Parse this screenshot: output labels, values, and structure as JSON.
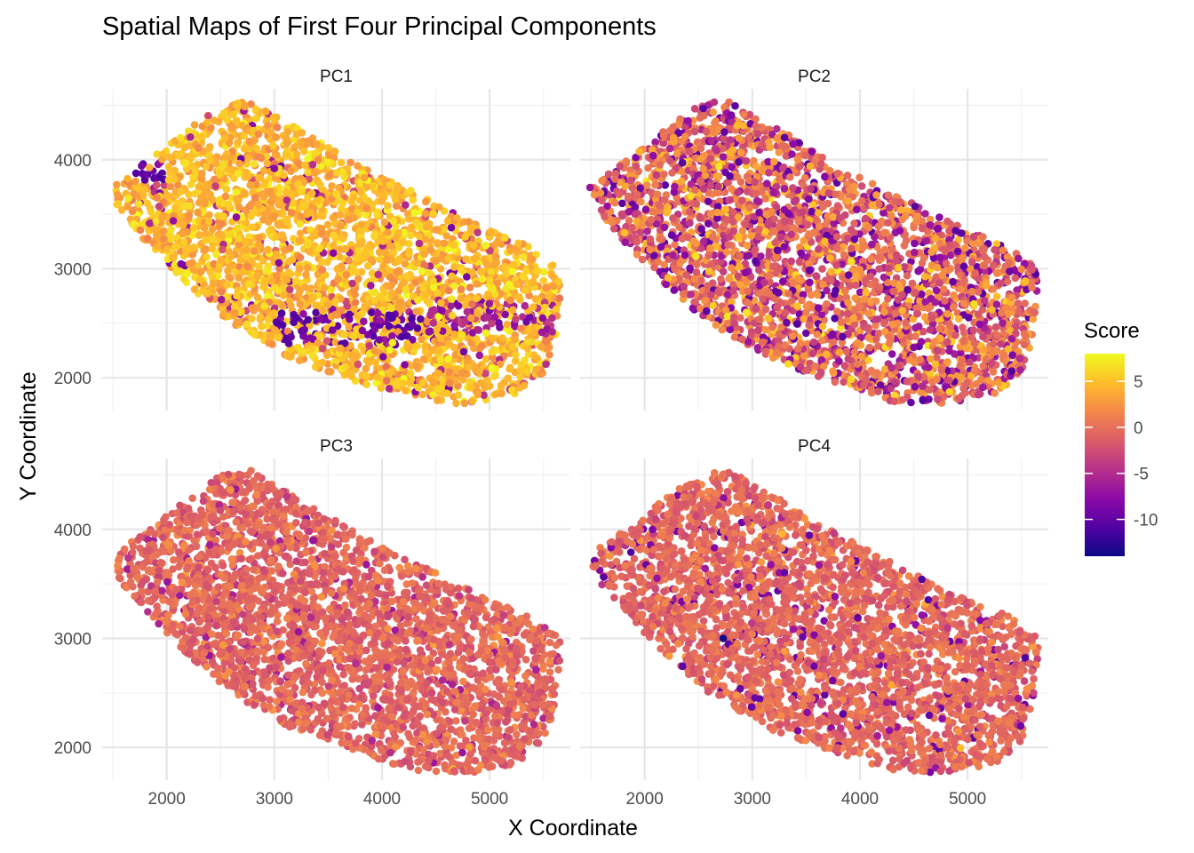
{
  "chart_data": {
    "type": "scatter",
    "title": "Spatial Maps of First Four Principal Components",
    "xlabel": "X Coordinate",
    "ylabel": "Y Coordinate",
    "xlim": [
      1400,
      5750
    ],
    "ylim": [
      1700,
      4650
    ],
    "x_ticks": [
      2000,
      3000,
      4000,
      5000
    ],
    "y_ticks": [
      2000,
      3000,
      4000
    ],
    "grid": true,
    "legend": {
      "title": "Score",
      "placement": "right",
      "type": "colorbar",
      "range": [
        -14,
        8
      ],
      "ticks": [
        5,
        0,
        -5,
        -10
      ],
      "colormap": "plasma",
      "colors": [
        "#0d0887",
        "#5302a3",
        "#8b0aa5",
        "#b83289",
        "#db5c68",
        "#f48849",
        "#febd2a",
        "#f0f921"
      ]
    },
    "panels": [
      {
        "name": "PC1",
        "spot_count": 3200,
        "score_summary": {
          "typical": 4.5,
          "min": -11,
          "max": 8
        },
        "low_score_regions": [
          {
            "x": [
              3000,
              4500
            ],
            "y": [
              2300,
              2600
            ],
            "score": -10
          },
          {
            "x": [
              1700,
              2000
            ],
            "y": [
              3800,
              4000
            ],
            "score": -10
          },
          {
            "x": [
              4400,
              5600
            ],
            "y": [
              2400,
              2700
            ],
            "score": -6
          }
        ]
      },
      {
        "name": "PC2",
        "spot_count": 3200,
        "score_summary": {
          "typical": 0,
          "min": -12,
          "max": 7
        }
      },
      {
        "name": "PC3",
        "spot_count": 3200,
        "score_summary": {
          "typical": -0.5,
          "min": -8,
          "max": 8
        }
      },
      {
        "name": "PC4",
        "spot_count": 3200,
        "score_summary": {
          "typical": -0.5,
          "min": -14,
          "max": 8
        },
        "notable_points": [
          {
            "x": 2730,
            "y": 3000,
            "score": -14
          },
          {
            "x": 3980,
            "y": 3190,
            "score": -10
          }
        ]
      }
    ],
    "tissue_outline": [
      [
        1480,
        3750
      ],
      [
        1600,
        3850
      ],
      [
        1900,
        4050
      ],
      [
        2150,
        4250
      ],
      [
        2500,
        4500
      ],
      [
        2800,
        4560
      ],
      [
        2950,
        4430
      ],
      [
        3300,
        4250
      ],
      [
        3800,
        3950
      ],
      [
        4500,
        3600
      ],
      [
        5000,
        3350
      ],
      [
        5400,
        3200
      ],
      [
        5650,
        3000
      ],
      [
        5660,
        2800
      ],
      [
        5620,
        2400
      ],
      [
        5500,
        2050
      ],
      [
        5250,
        1850
      ],
      [
        4800,
        1760
      ],
      [
        4300,
        1780
      ],
      [
        3800,
        1950
      ],
      [
        3200,
        2150
      ],
      [
        2600,
        2500
      ],
      [
        2200,
        2850
      ],
      [
        1800,
        3250
      ],
      [
        1550,
        3550
      ]
    ],
    "holes": {
      "PC1": [
        [
          4150,
          3520,
          55
        ],
        [
          2880,
          3950,
          45
        ],
        [
          4350,
          2250,
          45
        ],
        [
          1950,
          3920,
          35
        ]
      ],
      "PC2": [
        [
          4150,
          3500,
          60
        ],
        [
          2920,
          3900,
          45
        ],
        [
          4350,
          2290,
          55
        ],
        [
          4100,
          3150,
          45
        ],
        [
          2700,
          2950,
          35
        ]
      ],
      "PC3": [
        [
          4150,
          3480,
          65
        ],
        [
          3030,
          3950,
          45
        ],
        [
          4400,
          2240,
          65
        ],
        [
          3700,
          2400,
          45
        ],
        [
          4850,
          3050,
          45
        ],
        [
          2700,
          3050,
          40
        ],
        [
          5050,
          2650,
          40
        ],
        [
          2350,
          3900,
          35
        ]
      ],
      "PC4": [
        [
          4150,
          3480,
          65
        ],
        [
          3030,
          3950,
          45
        ],
        [
          4400,
          2240,
          65
        ],
        [
          3700,
          2400,
          45
        ],
        [
          4850,
          3050,
          45
        ],
        [
          2700,
          3050,
          40
        ],
        [
          5050,
          2650,
          40
        ],
        [
          2350,
          3900,
          35
        ],
        [
          2150,
          2950,
          35
        ]
      ]
    }
  }
}
